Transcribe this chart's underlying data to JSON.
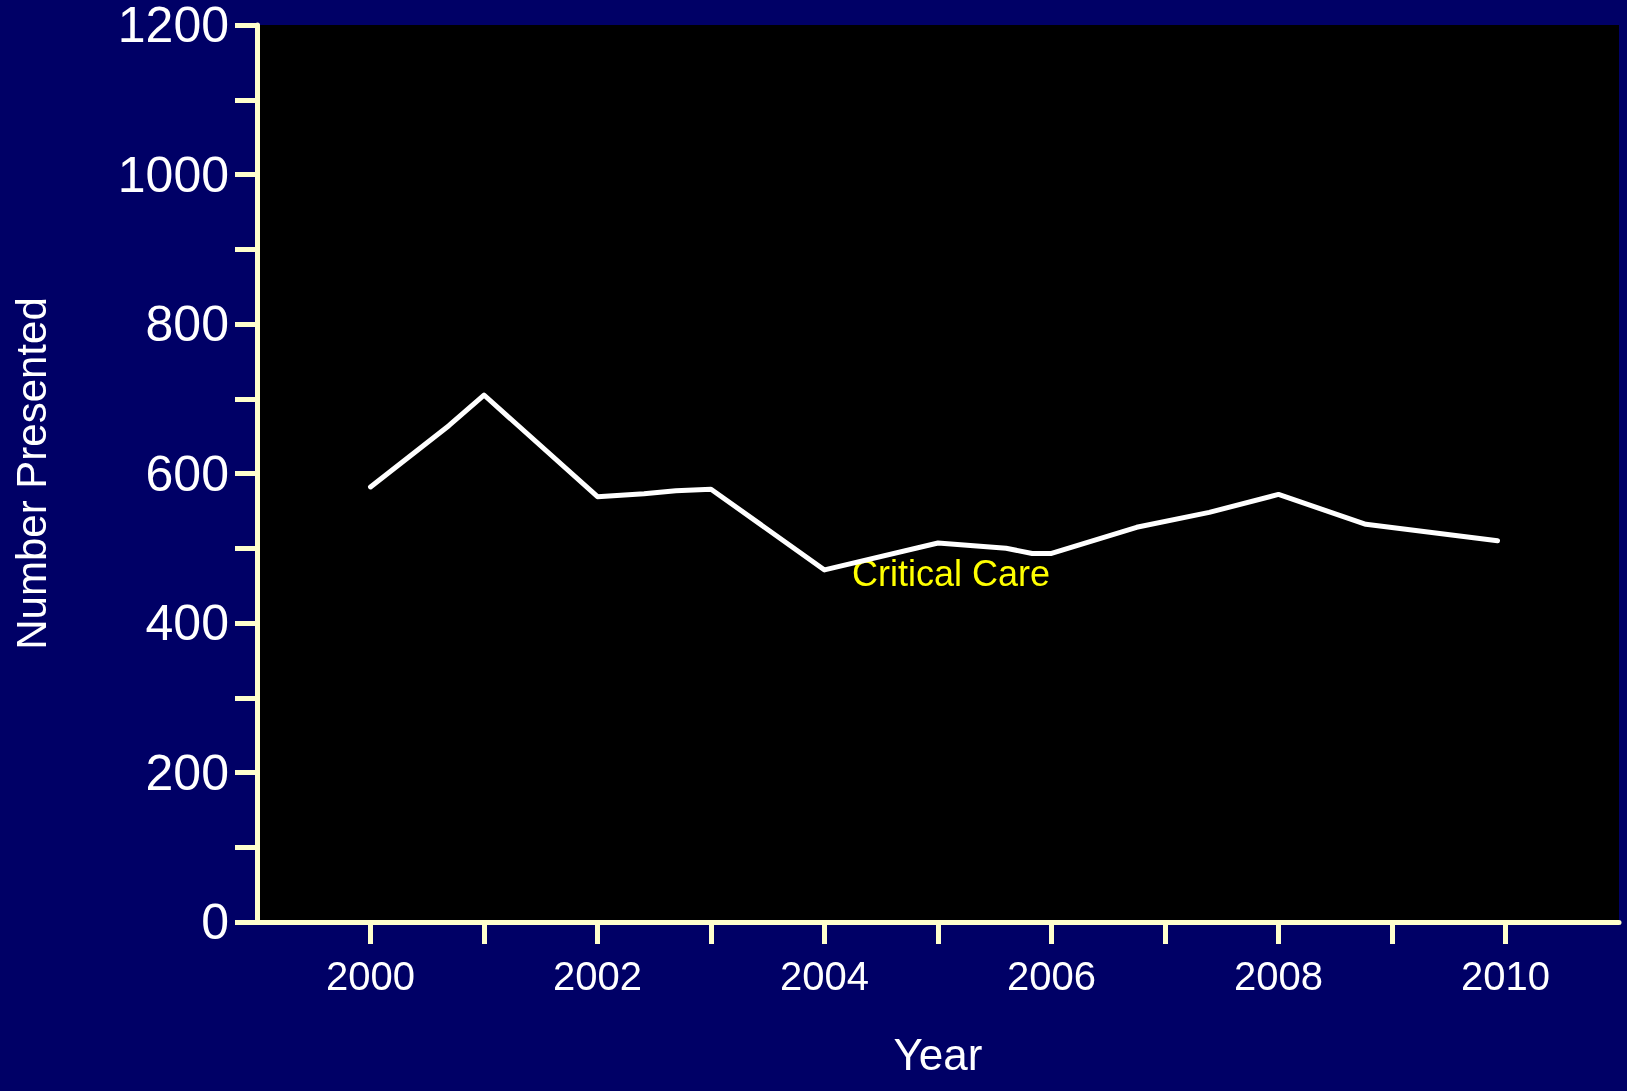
{
  "chart_data": {
    "type": "line",
    "xlabel": "Year",
    "ylabel": "Number Presented",
    "x": [
      2000,
      2000.69,
      2001,
      2002,
      2002.41,
      2002.69,
      2003,
      2004,
      2005,
      2005.6,
      2005.83,
      2006,
      2006.75,
      2007.39,
      2008,
      2008.77,
      2009.93
    ],
    "series": [
      {
        "color": "#ffffff",
        "values": [
          582,
          664,
          705,
          569,
          573,
          577,
          579,
          471,
          507,
          500,
          493,
          493,
          528,
          548,
          572,
          532,
          510
        ]
      }
    ],
    "annotations": [
      "Critical Care"
    ],
    "xlim": [
      1999,
      2011
    ],
    "xticks": [
      2000,
      2002,
      2004,
      2006,
      2008,
      2010
    ],
    "ylim": [
      0,
      1200
    ],
    "yticks": [
      0,
      200,
      400,
      600,
      800,
      1000,
      1200
    ],
    "grid": false,
    "marker": "none",
    "line_style": "solid"
  }
}
